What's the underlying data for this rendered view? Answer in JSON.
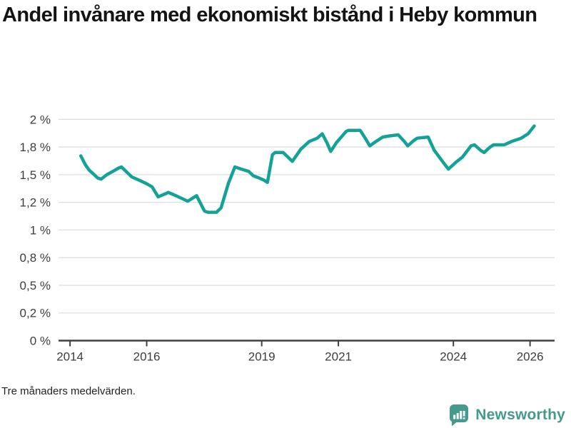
{
  "header": {
    "title": "Andel invånare med ekonomiskt bistånd i Heby kommun"
  },
  "footer": {
    "note": "Tre månaders medelvärden.",
    "brand": "Newsworthy"
  },
  "colors": {
    "line": "#14a296",
    "brand_teal": "#459a8c",
    "grid": "#dedede",
    "axis": "#404040",
    "tick_text": "#3d3d3d",
    "title_text": "#141414"
  },
  "chart_data": {
    "type": "line",
    "title": "Andel invånare med ekonomiskt bistånd i Heby kommun",
    "note": "Tre månaders medelvärden.",
    "unit": "%",
    "grid": true,
    "legend": false,
    "x_axis": {
      "range": [
        2013.7,
        2026.64
      ],
      "ticks": [
        {
          "value": 2014,
          "label": "2014"
        },
        {
          "value": 2016,
          "label": "2016"
        },
        {
          "value": 2019,
          "label": "2019"
        },
        {
          "value": 2021,
          "label": "2021"
        },
        {
          "value": 2024,
          "label": "2024"
        },
        {
          "value": 2026,
          "label": "2026"
        }
      ]
    },
    "y_axis": {
      "range": [
        0,
        2
      ],
      "ticks": [
        {
          "value": 0,
          "label": "0 %"
        },
        {
          "value": 0.25,
          "label": "0,2 %"
        },
        {
          "value": 0.5,
          "label": "0,5 %"
        },
        {
          "value": 0.75,
          "label": "0,8 %"
        },
        {
          "value": 1,
          "label": "1 %"
        },
        {
          "value": 1.25,
          "label": "1,2 %"
        },
        {
          "value": 1.5,
          "label": "1,5 %"
        },
        {
          "value": 1.75,
          "label": "1,8 %"
        },
        {
          "value": 2,
          "label": "2 %"
        }
      ]
    },
    "series": [
      {
        "name": "Andel invånare med ekonomiskt bistånd, Heby kommun",
        "color": "#14a296",
        "points": [
          [
            2014.28,
            1.67
          ],
          [
            2014.4,
            1.59
          ],
          [
            2014.5,
            1.54
          ],
          [
            2014.6,
            1.51
          ],
          [
            2014.72,
            1.47
          ],
          [
            2014.81,
            1.46
          ],
          [
            2014.96,
            1.5
          ],
          [
            2015.12,
            1.53
          ],
          [
            2015.27,
            1.56
          ],
          [
            2015.34,
            1.57
          ],
          [
            2015.49,
            1.52
          ],
          [
            2015.61,
            1.48
          ],
          [
            2015.8,
            1.45
          ],
          [
            2015.99,
            1.42
          ],
          [
            2016.14,
            1.39
          ],
          [
            2016.3,
            1.3
          ],
          [
            2016.51,
            1.33
          ],
          [
            2016.56,
            1.34
          ],
          [
            2016.76,
            1.31
          ],
          [
            2016.95,
            1.28
          ],
          [
            2017.07,
            1.26
          ],
          [
            2017.3,
            1.31
          ],
          [
            2017.51,
            1.17
          ],
          [
            2017.6,
            1.16
          ],
          [
            2017.82,
            1.16
          ],
          [
            2017.94,
            1.2
          ],
          [
            2018.13,
            1.42
          ],
          [
            2018.3,
            1.57
          ],
          [
            2018.47,
            1.55
          ],
          [
            2018.66,
            1.53
          ],
          [
            2018.78,
            1.49
          ],
          [
            2018.93,
            1.47
          ],
          [
            2019.06,
            1.45
          ],
          [
            2019.15,
            1.43
          ],
          [
            2019.28,
            1.68
          ],
          [
            2019.35,
            1.7
          ],
          [
            2019.56,
            1.7
          ],
          [
            2019.71,
            1.65
          ],
          [
            2019.8,
            1.62
          ],
          [
            2020.02,
            1.73
          ],
          [
            2020.24,
            1.8
          ],
          [
            2020.45,
            1.83
          ],
          [
            2020.58,
            1.87
          ],
          [
            2020.7,
            1.79
          ],
          [
            2020.8,
            1.71
          ],
          [
            2020.95,
            1.79
          ],
          [
            2021.05,
            1.83
          ],
          [
            2021.2,
            1.89
          ],
          [
            2021.26,
            1.9
          ],
          [
            2021.57,
            1.9
          ],
          [
            2021.7,
            1.83
          ],
          [
            2021.82,
            1.76
          ],
          [
            2021.98,
            1.8
          ],
          [
            2022.16,
            1.84
          ],
          [
            2022.32,
            1.85
          ],
          [
            2022.56,
            1.86
          ],
          [
            2022.72,
            1.8
          ],
          [
            2022.81,
            1.76
          ],
          [
            2022.97,
            1.81
          ],
          [
            2023.06,
            1.83
          ],
          [
            2023.34,
            1.84
          ],
          [
            2023.5,
            1.72
          ],
          [
            2023.65,
            1.65
          ],
          [
            2023.87,
            1.55
          ],
          [
            2024.06,
            1.61
          ],
          [
            2024.24,
            1.66
          ],
          [
            2024.46,
            1.76
          ],
          [
            2024.55,
            1.77
          ],
          [
            2024.71,
            1.72
          ],
          [
            2024.8,
            1.7
          ],
          [
            2024.96,
            1.75
          ],
          [
            2025.05,
            1.77
          ],
          [
            2025.33,
            1.77
          ],
          [
            2025.52,
            1.8
          ],
          [
            2025.77,
            1.83
          ],
          [
            2025.95,
            1.87
          ],
          [
            2026.11,
            1.94
          ]
        ]
      }
    ]
  }
}
